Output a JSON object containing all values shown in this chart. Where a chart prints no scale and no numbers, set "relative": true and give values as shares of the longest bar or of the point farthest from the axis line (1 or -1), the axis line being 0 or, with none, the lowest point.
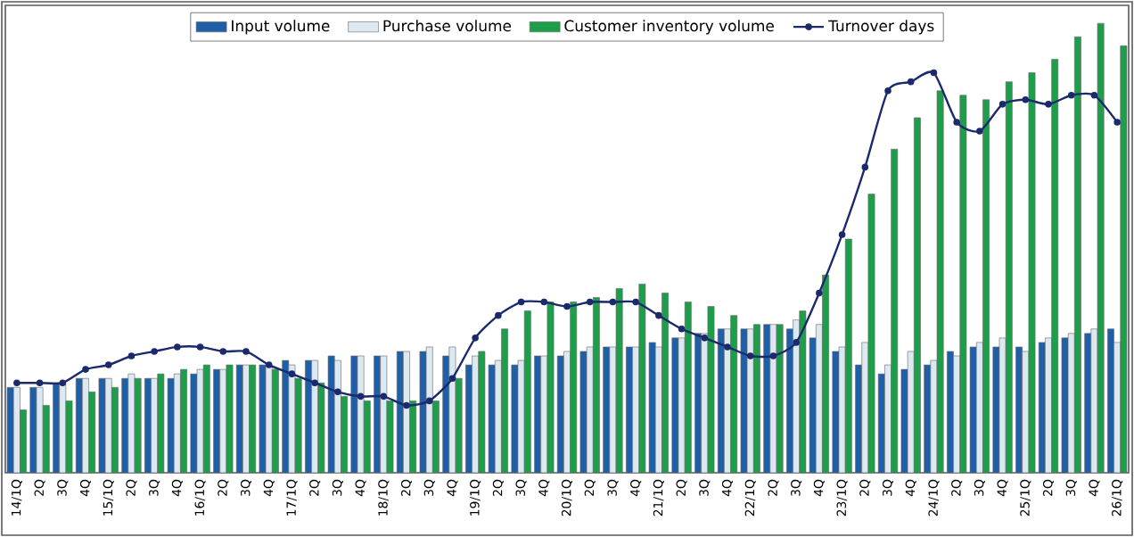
{
  "chart_data": {
    "type": "bar",
    "relative": true,
    "legend": "top",
    "marker": "circle",
    "categories": [
      "14/1Q",
      "2Q",
      "3Q",
      "4Q",
      "15/1Q",
      "2Q",
      "3Q",
      "4Q",
      "16/1Q",
      "2Q",
      "3Q",
      "4Q",
      "17/1Q",
      "2Q",
      "3Q",
      "4Q",
      "18/1Q",
      "2Q",
      "3Q",
      "4Q",
      "19/1Q",
      "2Q",
      "3Q",
      "4Q",
      "20/1Q",
      "2Q",
      "3Q",
      "4Q",
      "21/1Q",
      "2Q",
      "3Q",
      "4Q",
      "22/1Q",
      "2Q",
      "3Q",
      "4Q",
      "23/1Q",
      "2Q",
      "3Q",
      "4Q",
      "24/1Q",
      "2Q",
      "3Q",
      "4Q",
      "25/1Q",
      "2Q",
      "3Q",
      "4Q",
      "26/1Q"
    ],
    "series": [
      {
        "name": "Input volume",
        "color": "#1f5fa8",
        "values": [
          0.19,
          0.19,
          0.2,
          0.21,
          0.21,
          0.21,
          0.21,
          0.21,
          0.22,
          0.23,
          0.24,
          0.24,
          0.25,
          0.25,
          0.26,
          0.26,
          0.26,
          0.27,
          0.27,
          0.26,
          0.24,
          0.24,
          0.24,
          0.26,
          0.26,
          0.27,
          0.28,
          0.28,
          0.29,
          0.3,
          0.31,
          0.32,
          0.32,
          0.33,
          0.32,
          0.3,
          0.27,
          0.24,
          0.22,
          0.23,
          0.24,
          0.27,
          0.28,
          0.28,
          0.28,
          0.29,
          0.3,
          0.31,
          0.32
        ]
      },
      {
        "name": "Purchase volume",
        "color": "#dde9f0",
        "values": [
          0.19,
          0.19,
          0.2,
          0.21,
          0.21,
          0.22,
          0.21,
          0.22,
          0.23,
          0.23,
          0.24,
          0.24,
          0.24,
          0.25,
          0.25,
          0.26,
          0.26,
          0.27,
          0.28,
          0.28,
          0.26,
          0.25,
          0.25,
          0.26,
          0.27,
          0.28,
          0.28,
          0.28,
          0.28,
          0.3,
          0.31,
          0.32,
          0.32,
          0.33,
          0.34,
          0.33,
          0.28,
          0.29,
          0.24,
          0.27,
          0.25,
          0.26,
          0.29,
          0.3,
          0.27,
          0.3,
          0.31,
          0.32,
          0.29
        ]
      },
      {
        "name": "Customer inventory volume",
        "color": "#1e9e4a",
        "values": [
          0.14,
          0.15,
          0.16,
          0.18,
          0.19,
          0.21,
          0.22,
          0.23,
          0.24,
          0.24,
          0.24,
          0.23,
          0.21,
          0.2,
          0.17,
          0.16,
          0.16,
          0.16,
          0.16,
          0.21,
          0.27,
          0.32,
          0.36,
          0.38,
          0.38,
          0.39,
          0.41,
          0.42,
          0.4,
          0.38,
          0.37,
          0.35,
          0.33,
          0.33,
          0.36,
          0.44,
          0.52,
          0.62,
          0.72,
          0.79,
          0.85,
          0.84,
          0.83,
          0.87,
          0.89,
          0.92,
          0.97,
          1,
          0.95
        ]
      },
      {
        "name": "Turnover days",
        "type": "line",
        "color": "#1a2a6c",
        "values": [
          0.2,
          0.2,
          0.2,
          0.23,
          0.24,
          0.26,
          0.27,
          0.28,
          0.28,
          0.27,
          0.27,
          0.24,
          0.22,
          0.2,
          0.18,
          0.17,
          0.17,
          0.15,
          0.16,
          0.21,
          0.3,
          0.35,
          0.38,
          0.38,
          0.37,
          0.38,
          0.38,
          0.38,
          0.35,
          0.32,
          0.3,
          0.28,
          0.26,
          0.26,
          0.29,
          0.4,
          0.53,
          0.68,
          0.85,
          0.87,
          0.89,
          0.78,
          0.76,
          0.82,
          0.83,
          0.82,
          0.84,
          0.84,
          0.78
        ]
      }
    ]
  }
}
